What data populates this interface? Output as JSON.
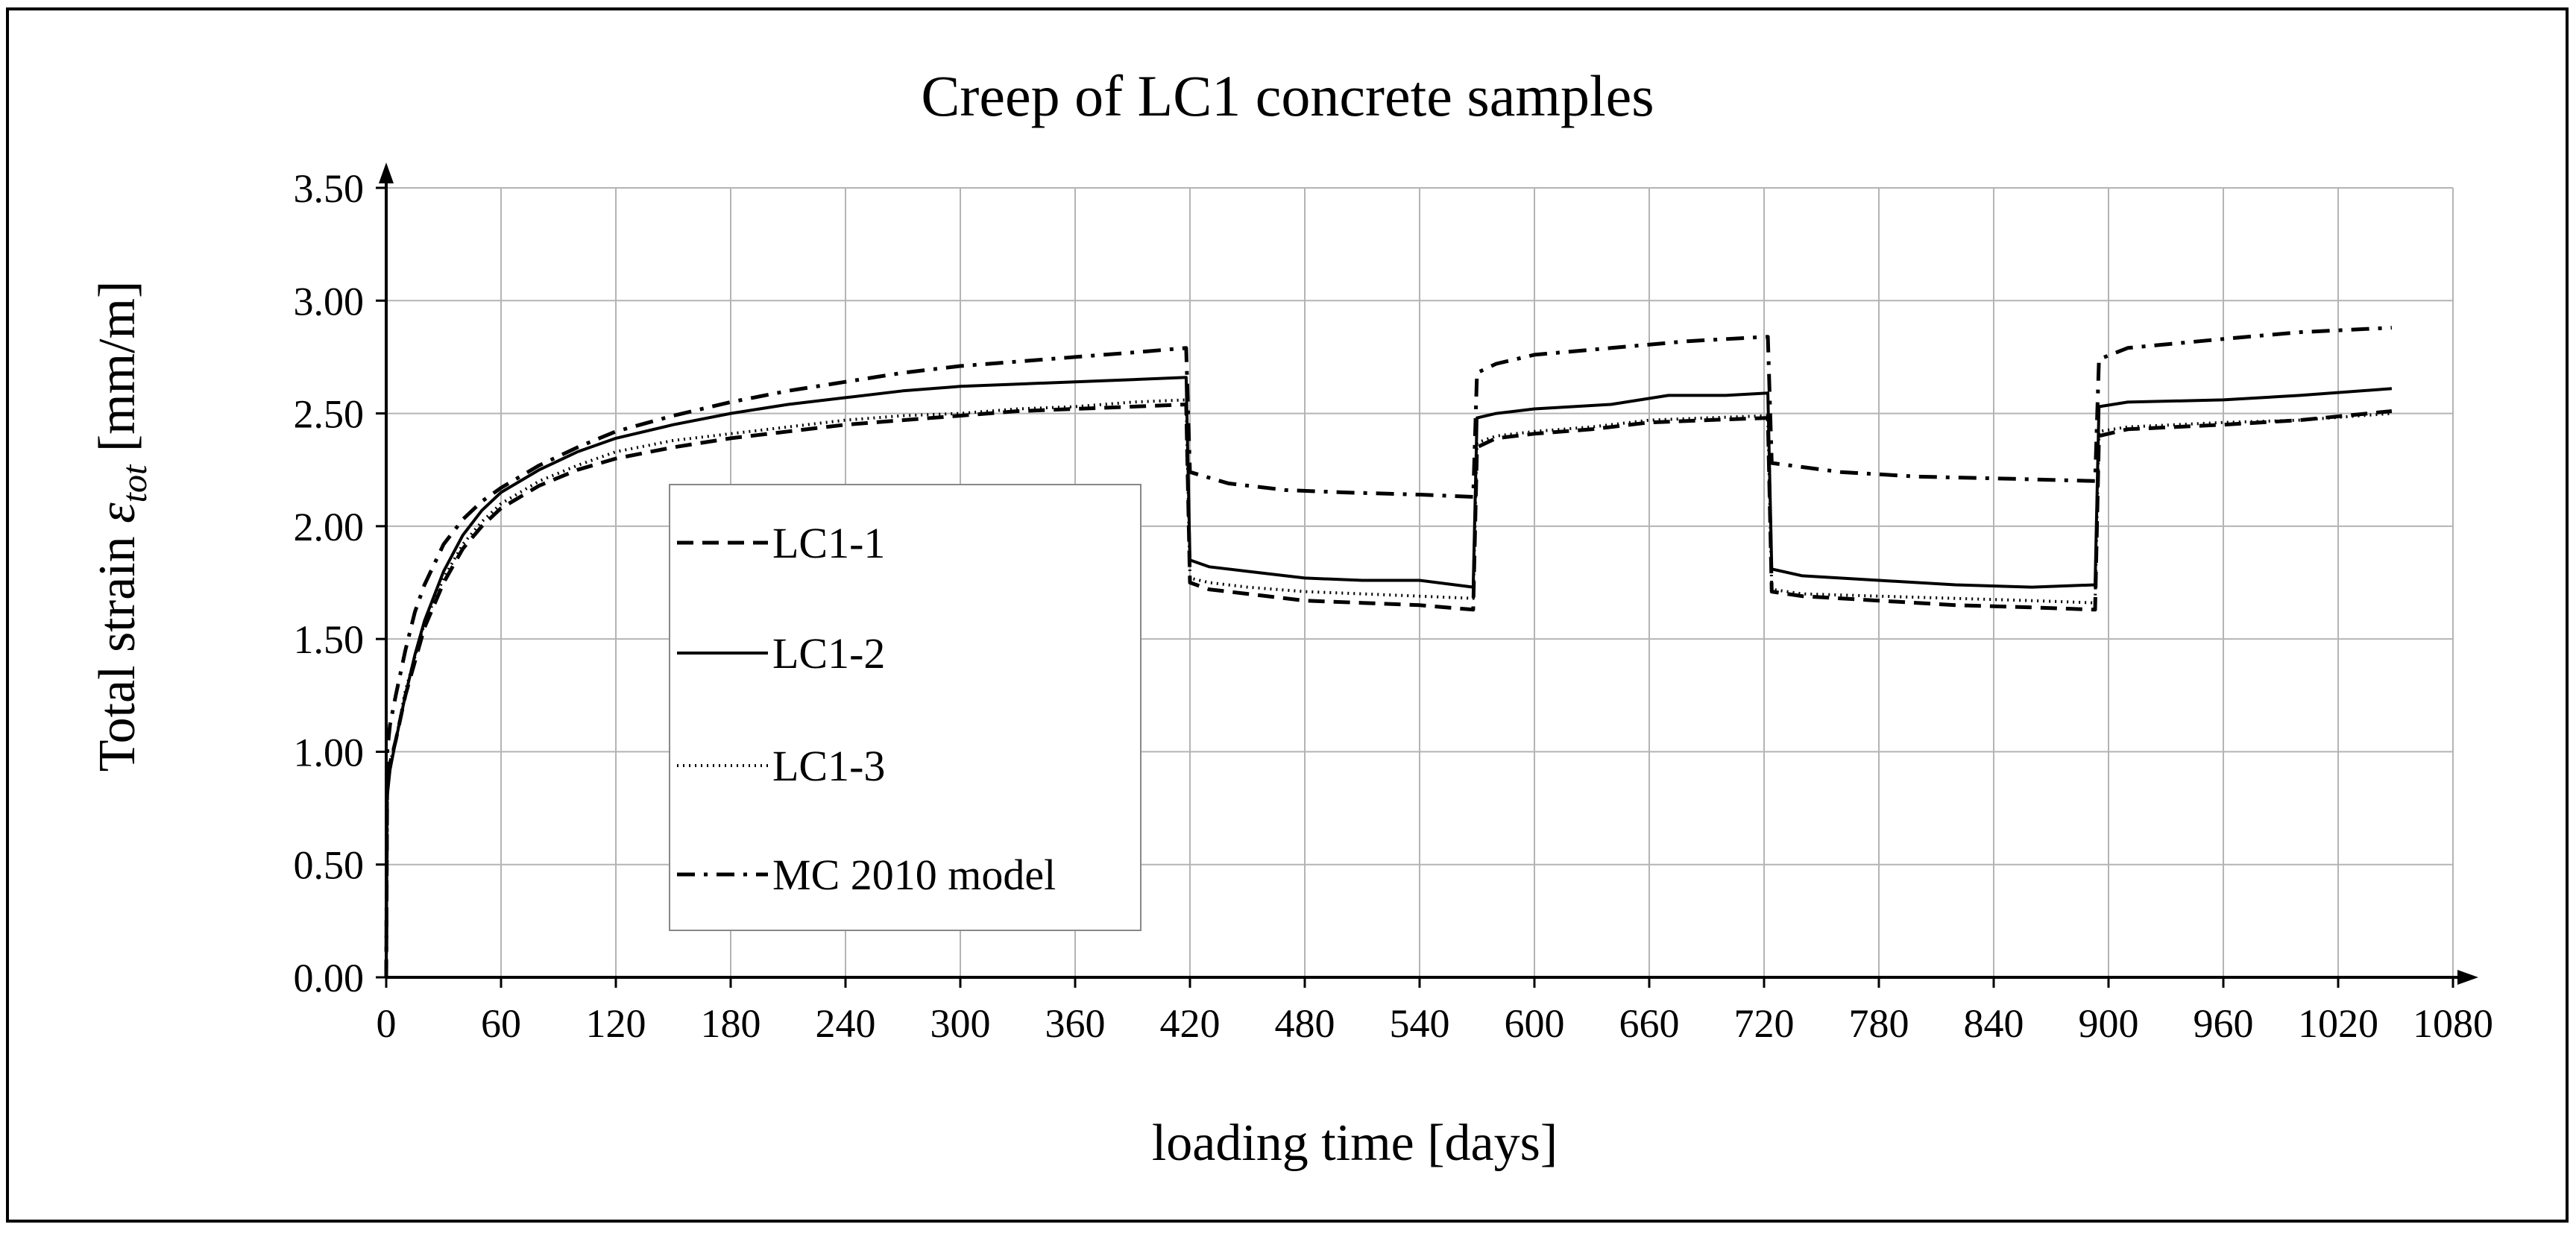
{
  "chart_data": {
    "type": "line",
    "title": "Creep of LC1 concrete samples",
    "xlabel": "loading time [days]",
    "ylabel": {
      "prefix": "Total strain ",
      "symbol": "ε",
      "subscript": "tot",
      "suffix": " [mm/m]"
    },
    "xlim": [
      0,
      1080
    ],
    "ylim": [
      0,
      3.5
    ],
    "x_ticks": [
      0,
      60,
      120,
      180,
      240,
      300,
      360,
      420,
      480,
      540,
      600,
      660,
      720,
      780,
      840,
      900,
      960,
      1020,
      1080
    ],
    "x_tick_labels": [
      "0",
      "60",
      "120",
      "180",
      "240",
      "300",
      "360",
      "420",
      "480",
      "540",
      "600",
      "660",
      "720",
      "780",
      "840",
      "900",
      "960",
      "1020",
      "1080"
    ],
    "y_ticks": [
      0,
      0.5,
      1,
      1.5,
      2,
      2.5,
      3,
      3.5
    ],
    "y_tick_labels": [
      "0.00",
      "0.50",
      "1.00",
      "1.50",
      "2.00",
      "2.50",
      "3.00",
      "3.50"
    ],
    "grid": true,
    "legend_position": "center-left",
    "series": [
      {
        "name": "LC1-1",
        "dash": "dashed",
        "points": [
          [
            0,
            0
          ],
          [
            0.5,
            0.85
          ],
          [
            2,
            0.95
          ],
          [
            5,
            1.05
          ],
          [
            10,
            1.25
          ],
          [
            15,
            1.4
          ],
          [
            20,
            1.55
          ],
          [
            30,
            1.75
          ],
          [
            40,
            1.9
          ],
          [
            50,
            2.0
          ],
          [
            60,
            2.08
          ],
          [
            80,
            2.18
          ],
          [
            100,
            2.25
          ],
          [
            120,
            2.3
          ],
          [
            150,
            2.35
          ],
          [
            180,
            2.39
          ],
          [
            210,
            2.42
          ],
          [
            240,
            2.45
          ],
          [
            270,
            2.47
          ],
          [
            300,
            2.49
          ],
          [
            330,
            2.51
          ],
          [
            360,
            2.52
          ],
          [
            390,
            2.53
          ],
          [
            418,
            2.54
          ],
          [
            420,
            1.75
          ],
          [
            430,
            1.72
          ],
          [
            450,
            1.7
          ],
          [
            480,
            1.67
          ],
          [
            510,
            1.66
          ],
          [
            540,
            1.65
          ],
          [
            568,
            1.63
          ],
          [
            570,
            2.35
          ],
          [
            580,
            2.39
          ],
          [
            600,
            2.41
          ],
          [
            630,
            2.43
          ],
          [
            660,
            2.46
          ],
          [
            690,
            2.47
          ],
          [
            722,
            2.48
          ],
          [
            724,
            1.71
          ],
          [
            740,
            1.69
          ],
          [
            780,
            1.67
          ],
          [
            820,
            1.65
          ],
          [
            860,
            1.64
          ],
          [
            893,
            1.63
          ],
          [
            895,
            2.4
          ],
          [
            910,
            2.43
          ],
          [
            960,
            2.45
          ],
          [
            1000,
            2.47
          ],
          [
            1048,
            2.51
          ]
        ]
      },
      {
        "name": "LC1-2",
        "dash": "solid",
        "points": [
          [
            0,
            0
          ],
          [
            0.5,
            0.8
          ],
          [
            2,
            0.92
          ],
          [
            5,
            1.05
          ],
          [
            10,
            1.25
          ],
          [
            15,
            1.43
          ],
          [
            20,
            1.58
          ],
          [
            30,
            1.8
          ],
          [
            40,
            1.96
          ],
          [
            50,
            2.07
          ],
          [
            60,
            2.15
          ],
          [
            80,
            2.25
          ],
          [
            100,
            2.33
          ],
          [
            120,
            2.39
          ],
          [
            150,
            2.45
          ],
          [
            180,
            2.5
          ],
          [
            210,
            2.54
          ],
          [
            240,
            2.57
          ],
          [
            270,
            2.6
          ],
          [
            300,
            2.62
          ],
          [
            330,
            2.63
          ],
          [
            360,
            2.64
          ],
          [
            390,
            2.65
          ],
          [
            418,
            2.66
          ],
          [
            420,
            1.85
          ],
          [
            430,
            1.82
          ],
          [
            450,
            1.8
          ],
          [
            480,
            1.77
          ],
          [
            510,
            1.76
          ],
          [
            540,
            1.76
          ],
          [
            568,
            1.73
          ],
          [
            570,
            2.48
          ],
          [
            580,
            2.5
          ],
          [
            600,
            2.52
          ],
          [
            640,
            2.54
          ],
          [
            670,
            2.58
          ],
          [
            700,
            2.58
          ],
          [
            722,
            2.59
          ],
          [
            724,
            1.81
          ],
          [
            740,
            1.78
          ],
          [
            780,
            1.76
          ],
          [
            820,
            1.74
          ],
          [
            860,
            1.73
          ],
          [
            893,
            1.74
          ],
          [
            895,
            2.53
          ],
          [
            910,
            2.55
          ],
          [
            960,
            2.56
          ],
          [
            1000,
            2.58
          ],
          [
            1048,
            2.61
          ]
        ]
      },
      {
        "name": "LC1-3",
        "dash": "dotted",
        "points": [
          [
            0,
            0
          ],
          [
            0.5,
            0.85
          ],
          [
            2,
            0.95
          ],
          [
            5,
            1.05
          ],
          [
            10,
            1.27
          ],
          [
            15,
            1.42
          ],
          [
            20,
            1.57
          ],
          [
            30,
            1.77
          ],
          [
            40,
            1.92
          ],
          [
            50,
            2.02
          ],
          [
            60,
            2.1
          ],
          [
            80,
            2.2
          ],
          [
            100,
            2.27
          ],
          [
            120,
            2.33
          ],
          [
            150,
            2.38
          ],
          [
            180,
            2.41
          ],
          [
            210,
            2.44
          ],
          [
            240,
            2.47
          ],
          [
            270,
            2.49
          ],
          [
            300,
            2.5
          ],
          [
            330,
            2.52
          ],
          [
            360,
            2.53
          ],
          [
            390,
            2.55
          ],
          [
            418,
            2.56
          ],
          [
            420,
            1.77
          ],
          [
            430,
            1.75
          ],
          [
            450,
            1.73
          ],
          [
            480,
            1.71
          ],
          [
            510,
            1.7
          ],
          [
            540,
            1.69
          ],
          [
            568,
            1.68
          ],
          [
            570,
            2.37
          ],
          [
            580,
            2.4
          ],
          [
            600,
            2.42
          ],
          [
            630,
            2.44
          ],
          [
            660,
            2.47
          ],
          [
            690,
            2.48
          ],
          [
            722,
            2.49
          ],
          [
            724,
            1.72
          ],
          [
            740,
            1.7
          ],
          [
            780,
            1.69
          ],
          [
            820,
            1.68
          ],
          [
            860,
            1.67
          ],
          [
            893,
            1.66
          ],
          [
            895,
            2.42
          ],
          [
            910,
            2.44
          ],
          [
            960,
            2.46
          ],
          [
            1000,
            2.47
          ],
          [
            1048,
            2.5
          ]
        ]
      },
      {
        "name": "MC 2010 model",
        "dash": "dashdot",
        "points": [
          [
            0,
            0
          ],
          [
            0.5,
            1.0
          ],
          [
            2,
            1.12
          ],
          [
            5,
            1.25
          ],
          [
            10,
            1.45
          ],
          [
            15,
            1.62
          ],
          [
            20,
            1.74
          ],
          [
            30,
            1.92
          ],
          [
            40,
            2.03
          ],
          [
            50,
            2.11
          ],
          [
            60,
            2.17
          ],
          [
            80,
            2.27
          ],
          [
            100,
            2.35
          ],
          [
            120,
            2.42
          ],
          [
            150,
            2.49
          ],
          [
            180,
            2.55
          ],
          [
            210,
            2.6
          ],
          [
            240,
            2.64
          ],
          [
            270,
            2.68
          ],
          [
            300,
            2.71
          ],
          [
            330,
            2.73
          ],
          [
            360,
            2.75
          ],
          [
            390,
            2.77
          ],
          [
            418,
            2.79
          ],
          [
            420,
            2.24
          ],
          [
            440,
            2.19
          ],
          [
            470,
            2.16
          ],
          [
            500,
            2.15
          ],
          [
            540,
            2.14
          ],
          [
            568,
            2.13
          ],
          [
            570,
            2.68
          ],
          [
            580,
            2.72
          ],
          [
            600,
            2.76
          ],
          [
            640,
            2.79
          ],
          [
            680,
            2.82
          ],
          [
            722,
            2.84
          ],
          [
            724,
            2.28
          ],
          [
            760,
            2.24
          ],
          [
            800,
            2.22
          ],
          [
            850,
            2.21
          ],
          [
            893,
            2.2
          ],
          [
            895,
            2.74
          ],
          [
            910,
            2.79
          ],
          [
            960,
            2.83
          ],
          [
            1000,
            2.86
          ],
          [
            1048,
            2.88
          ]
        ]
      }
    ]
  }
}
